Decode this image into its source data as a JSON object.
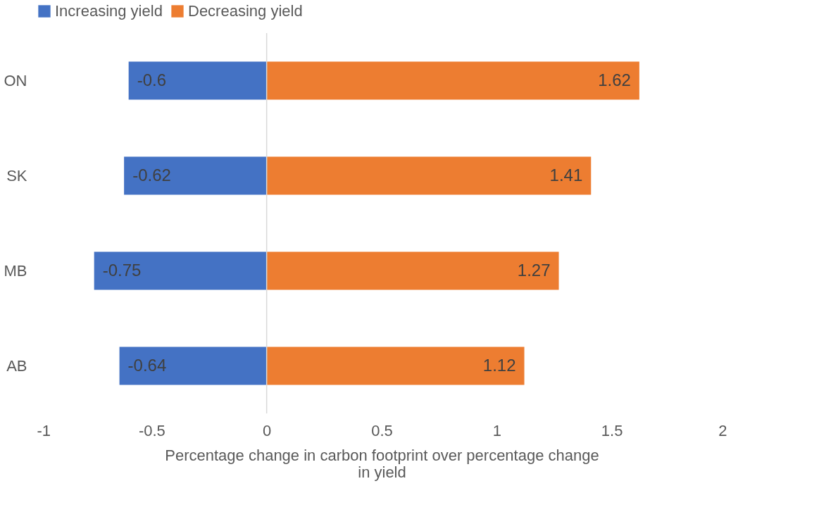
{
  "chart_data": {
    "type": "bar",
    "orientation": "horizontal",
    "stacked": true,
    "categories": [
      "ON",
      "SK",
      "MB",
      "AB"
    ],
    "series": [
      {
        "name": "Increasing yield",
        "color": "#4472c4",
        "values": [
          -0.6,
          -0.62,
          -0.75,
          -0.64
        ]
      },
      {
        "name": "Decreasing yield",
        "color": "#ed7d31",
        "values": [
          1.62,
          1.41,
          1.27,
          1.12
        ]
      }
    ],
    "xlim": [
      -1,
      2
    ],
    "xticks": [
      -1,
      -0.5,
      0,
      0.5,
      1,
      1.5,
      2
    ],
    "xlabel": "Percentage change in carbon footprint over percentage change in yield",
    "data_labels": true,
    "legend": "top",
    "grid": false,
    "ref_lines": [
      {
        "axis": "x",
        "value": 0,
        "color": "#d9d9d9"
      }
    ]
  }
}
